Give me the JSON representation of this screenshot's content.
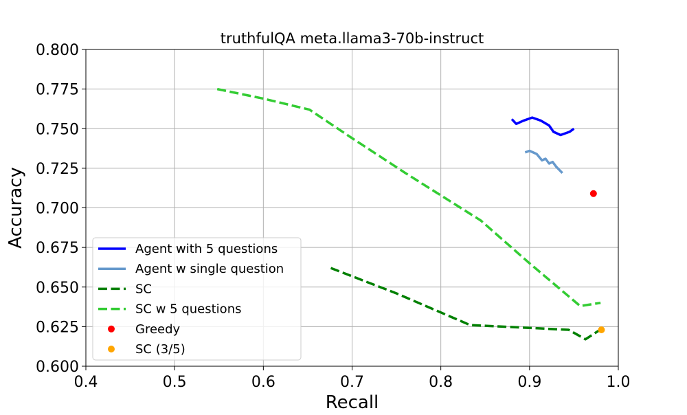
{
  "chart_data": {
    "type": "line",
    "title": "truthfulQA meta.llama3-70b-instruct",
    "xlabel": "Recall",
    "ylabel": "Accuracy",
    "xlim": [
      0.4,
      1.0
    ],
    "ylim": [
      0.6,
      0.8
    ],
    "xticks": [
      0.4,
      0.5,
      0.6,
      0.7,
      0.8,
      0.9,
      1.0
    ],
    "xtick_labels": [
      "0.4",
      "0.5",
      "0.6",
      "0.7",
      "0.8",
      "0.9",
      "1.0"
    ],
    "yticks": [
      0.6,
      0.625,
      0.65,
      0.675,
      0.7,
      0.725,
      0.75,
      0.775,
      0.8
    ],
    "ytick_labels": [
      "0.600",
      "0.625",
      "0.650",
      "0.675",
      "0.700",
      "0.725",
      "0.750",
      "0.775",
      "0.800"
    ],
    "grid": true,
    "legend_position": "lower-left",
    "series": [
      {
        "name": "Agent with 5 questions",
        "kind": "line",
        "style": "solid",
        "color": "#0000ff",
        "x": [
          0.88,
          0.885,
          0.893,
          0.903,
          0.913,
          0.922,
          0.927,
          0.935,
          0.945,
          0.95
        ],
        "y": [
          0.756,
          0.753,
          0.755,
          0.757,
          0.755,
          0.752,
          0.748,
          0.746,
          0.748,
          0.75
        ]
      },
      {
        "name": "Agent w single question",
        "kind": "line",
        "style": "solid",
        "color": "#6699cc",
        "x": [
          0.895,
          0.9,
          0.908,
          0.914,
          0.918,
          0.922,
          0.926,
          0.93,
          0.937
        ],
        "y": [
          0.735,
          0.736,
          0.734,
          0.73,
          0.731,
          0.728,
          0.729,
          0.726,
          0.722
        ]
      },
      {
        "name": "SC",
        "kind": "line",
        "style": "dashed",
        "color": "#008000",
        "x": [
          0.676,
          0.75,
          0.833,
          0.944,
          0.963,
          0.985
        ],
        "y": [
          0.662,
          0.646,
          0.626,
          0.623,
          0.617,
          0.625
        ]
      },
      {
        "name": "SC w 5 questions",
        "kind": "line",
        "style": "dashed",
        "color": "#33cc33",
        "x": [
          0.548,
          0.6,
          0.652,
          0.7,
          0.76,
          0.845,
          0.9,
          0.957,
          0.98
        ],
        "y": [
          0.775,
          0.769,
          0.762,
          0.744,
          0.722,
          0.692,
          0.665,
          0.638,
          0.64
        ]
      },
      {
        "name": "Greedy",
        "kind": "scatter",
        "color": "#ff0000",
        "x": [
          0.972
        ],
        "y": [
          0.709
        ]
      },
      {
        "name": "SC (3/5)",
        "kind": "scatter",
        "color": "#ffa500",
        "x": [
          0.981
        ],
        "y": [
          0.623
        ]
      }
    ]
  }
}
